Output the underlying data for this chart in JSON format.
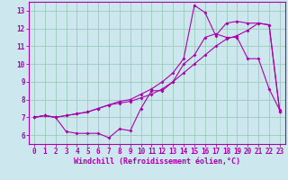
{
  "xlabel": "Windchill (Refroidissement éolien,°C)",
  "bg_color": "#cce8ee",
  "grid_color": "#99ccbb",
  "line_color": "#aa00aa",
  "spine_color": "#aa00aa",
  "xlim": [
    -0.5,
    23.5
  ],
  "ylim": [
    5.5,
    13.5
  ],
  "xticks": [
    0,
    1,
    2,
    3,
    4,
    5,
    6,
    7,
    8,
    9,
    10,
    11,
    12,
    13,
    14,
    15,
    16,
    17,
    18,
    19,
    20,
    21,
    22,
    23
  ],
  "yticks": [
    6,
    7,
    8,
    9,
    10,
    11,
    12,
    13
  ],
  "series1_x": [
    0,
    1,
    2,
    3,
    4,
    5,
    6,
    7,
    8,
    9,
    10,
    11,
    12,
    13,
    14,
    15,
    16,
    17,
    18,
    19,
    20,
    21,
    22,
    23
  ],
  "series1_y": [
    7.0,
    7.1,
    7.0,
    6.2,
    6.1,
    6.1,
    6.1,
    5.85,
    6.35,
    6.25,
    7.5,
    8.5,
    8.5,
    9.0,
    10.0,
    10.5,
    11.5,
    11.7,
    11.5,
    11.5,
    10.3,
    10.3,
    8.6,
    7.4
  ],
  "series2_x": [
    0,
    1,
    2,
    3,
    4,
    5,
    6,
    7,
    8,
    9,
    10,
    11,
    12,
    13,
    14,
    15,
    16,
    17,
    18,
    19,
    20,
    21,
    22,
    23
  ],
  "series2_y": [
    7.0,
    7.1,
    7.0,
    7.1,
    7.2,
    7.3,
    7.5,
    7.7,
    7.8,
    7.9,
    8.1,
    8.3,
    8.6,
    9.0,
    9.5,
    10.0,
    10.5,
    11.0,
    11.4,
    11.6,
    11.9,
    12.3,
    12.2,
    7.3
  ],
  "series3_x": [
    0,
    1,
    2,
    3,
    4,
    5,
    6,
    7,
    8,
    9,
    10,
    11,
    12,
    13,
    14,
    15,
    16,
    17,
    18,
    19,
    20,
    21,
    22,
    23
  ],
  "series3_y": [
    7.0,
    7.1,
    7.0,
    7.1,
    7.2,
    7.3,
    7.5,
    7.7,
    7.9,
    8.0,
    8.3,
    8.6,
    9.0,
    9.5,
    10.3,
    13.3,
    12.9,
    11.6,
    12.3,
    12.4,
    12.3,
    12.3,
    12.2,
    7.3
  ],
  "tick_fontsize": 5.5,
  "xlabel_fontsize": 6.0,
  "marker_size": 2.0,
  "line_width": 0.8
}
